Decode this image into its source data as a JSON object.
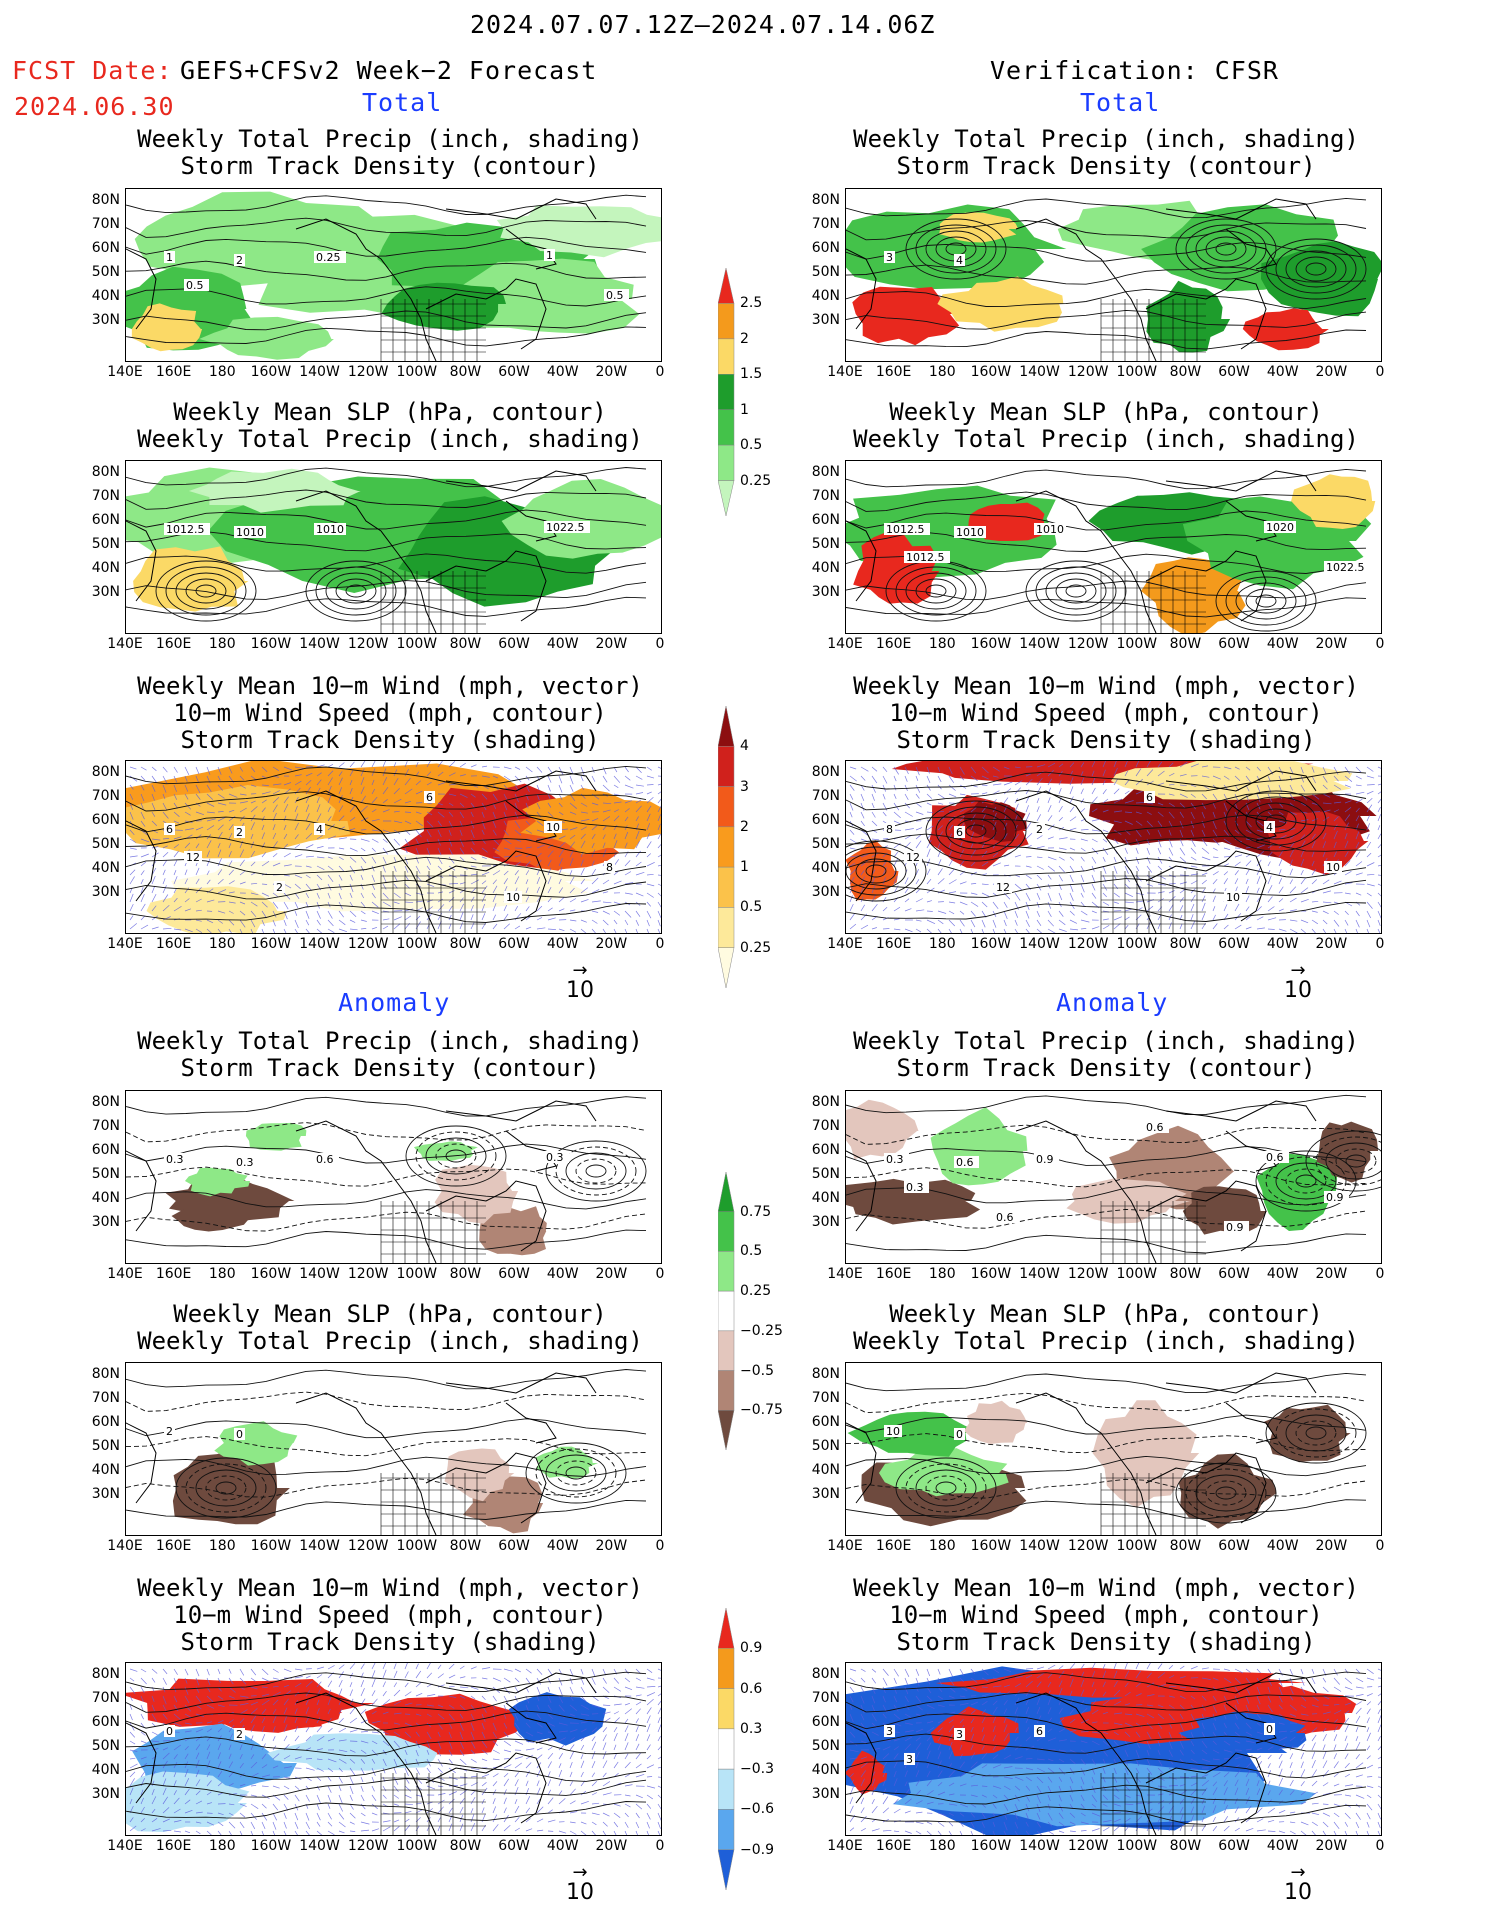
{
  "header": {
    "period": "2024.07.07.12Z–2024.07.14.06Z",
    "fcst_label": "FCST Date:",
    "fcst_model": "GEFS+CFSv2 Week−2 Forecast",
    "fcst_date": "2024.06.30",
    "verification": "Verification: CFSR"
  },
  "sections": {
    "total": "Total",
    "anomaly": "Anomaly"
  },
  "panel_titles": {
    "precip_track": "Weekly Total Precip (inch, shading)\nStorm Track Density (contour)",
    "slp_precip": "Weekly Mean SLP (hPa, contour)\nWeekly Total Precip (inch, shading)",
    "wind_track": "Weekly Mean 10−m Wind (mph, vector)\n10−m Wind Speed (mph, contour)\nStorm Track Density (shading)"
  },
  "axes": {
    "lat_labels": [
      "80N",
      "70N",
      "60N",
      "50N",
      "40N",
      "30N"
    ],
    "lon_labels": [
      "140E",
      "160E",
      "180",
      "160W",
      "140W",
      "120W",
      "100W",
      "80W",
      "60W",
      "40W",
      "20W",
      "0"
    ]
  },
  "vector_ref": "10",
  "colorbars": {
    "precip_total": {
      "labels": [
        "2.5",
        "2",
        "1.5",
        "1",
        "0.5",
        "0.25"
      ],
      "colors": [
        "#e8281e",
        "#f49a1c",
        "#fbd966",
        "#1e9d2c",
        "#44c24a",
        "#8ee887",
        "#c4f5bd"
      ]
    },
    "track_total": {
      "labels": [
        "4",
        "3",
        "2",
        "1",
        "0.5",
        "0.25"
      ],
      "colors": [
        "#8c0e10",
        "#d0211c",
        "#f25a1a",
        "#f99b1d",
        "#fbc24a",
        "#fde99a",
        "#fffbe0"
      ]
    },
    "precip_anom": {
      "labels": [
        "0.75",
        "0.5",
        "0.25",
        "−0.25",
        "−0.5",
        "−0.75"
      ],
      "colors": [
        "#1e9d2c",
        "#44c24a",
        "#8ee887",
        "#ffffff",
        "#e3c6bd",
        "#b08575",
        "#6e4a3e"
      ]
    },
    "track_anom": {
      "labels": [
        "0.9",
        "0.6",
        "0.3",
        "−0.3",
        "−0.6",
        "−0.9"
      ],
      "colors": [
        "#e8281e",
        "#f49a1c",
        "#fbd966",
        "#ffffff",
        "#b8e4f7",
        "#5aa7ee",
        "#1e5fd8"
      ]
    }
  },
  "contour_labels": {
    "p1": [
      "1",
      "2",
      "0.25",
      "1",
      "0.5",
      "0.5"
    ],
    "p2": [
      "1012.5",
      "1010",
      "1010",
      "1022.5"
    ],
    "p3": [
      "6",
      "2",
      "4",
      "10",
      "12",
      "8",
      "6",
      "2",
      "10"
    ],
    "p4": [
      "0.3",
      "0.3",
      "0.6",
      "0.3"
    ],
    "p5": [
      "2",
      "0"
    ],
    "p6": [
      "0",
      "2"
    ],
    "v1": [
      "3",
      "4"
    ],
    "v2": [
      "1012.5",
      "1010",
      "1010",
      "1020",
      "1012.5",
      "1022.5"
    ],
    "v3": [
      "8",
      "6",
      "2",
      "4",
      "12",
      "10",
      "6",
      "12",
      "10"
    ],
    "v4": [
      "0.3",
      "0.6",
      "0.9",
      "0.6",
      "0.3",
      "0.9",
      "0.6",
      "0.6",
      "0.9"
    ],
    "v5": [
      "10",
      "0"
    ],
    "v6": [
      "3",
      "3",
      "6",
      "0",
      "3"
    ]
  }
}
